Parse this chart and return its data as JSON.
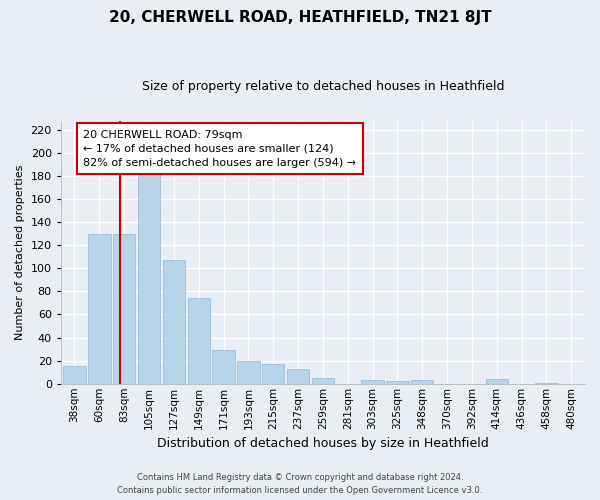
{
  "title": "20, CHERWELL ROAD, HEATHFIELD, TN21 8JT",
  "subtitle": "Size of property relative to detached houses in Heathfield",
  "xlabel": "Distribution of detached houses by size in Heathfield",
  "ylabel": "Number of detached properties",
  "bar_labels": [
    "38sqm",
    "60sqm",
    "83sqm",
    "105sqm",
    "127sqm",
    "149sqm",
    "171sqm",
    "193sqm",
    "215sqm",
    "237sqm",
    "259sqm",
    "281sqm",
    "303sqm",
    "325sqm",
    "348sqm",
    "370sqm",
    "392sqm",
    "414sqm",
    "436sqm",
    "458sqm",
    "480sqm"
  ],
  "bar_values": [
    15,
    130,
    130,
    183,
    107,
    74,
    29,
    20,
    17,
    13,
    5,
    0,
    3,
    2,
    3,
    0,
    0,
    4,
    0,
    1,
    0
  ],
  "bar_color": "#b8d4e8",
  "bar_edge_color": "#a0bdd8",
  "vline_color": "#cc0000",
  "vline_x": 1.82,
  "ylim": [
    0,
    228
  ],
  "yticks": [
    0,
    20,
    40,
    60,
    80,
    100,
    120,
    140,
    160,
    180,
    200,
    220
  ],
  "annotation_title": "20 CHERWELL ROAD: 79sqm",
  "annotation_line1": "← 17% of detached houses are smaller (124)",
  "annotation_line2": "82% of semi-detached houses are larger (594) →",
  "footer1": "Contains HM Land Registry data © Crown copyright and database right 2024.",
  "footer2": "Contains public sector information licensed under the Open Government Licence v3.0.",
  "background_color": "#e8eef4",
  "plot_background": "#e8eef4",
  "grid_color": "#ffffff",
  "title_fontsize": 11,
  "subtitle_fontsize": 9,
  "ylabel_fontsize": 8,
  "xlabel_fontsize": 9,
  "tick_fontsize": 8,
  "bar_label_fontsize": 7.5
}
